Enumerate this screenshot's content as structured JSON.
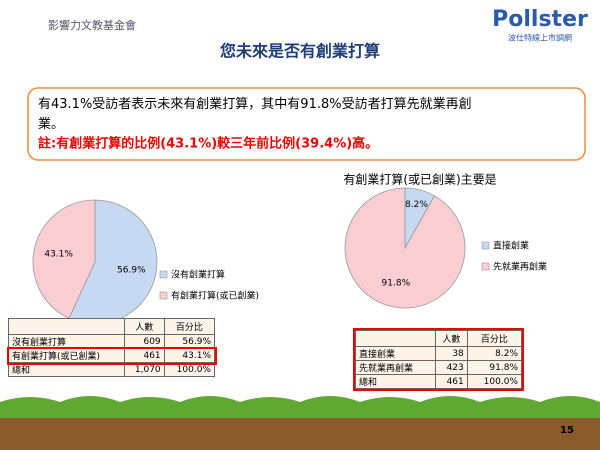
{
  "header": {
    "logo_left": "影響力文教基金會",
    "logo_right": "Pollster",
    "logo_right_sub": "波仕特線上市調網",
    "title": "您未來是否有創業打算"
  },
  "summary": {
    "line1": "有43.1%受訪者表示未來有創業打算，其中有91.8%受訪者打算先就業再創業。",
    "line2": "註:有創業打算的比例(43.1%)較三年前比例(39.4%)高。"
  },
  "chart_data": [
    {
      "type": "pie",
      "categories": [
        "沒有創業打算",
        "有創業打算(或已創業)"
      ],
      "values": [
        56.9,
        43.1
      ],
      "value_labels": [
        "56.9%",
        "43.1%"
      ],
      "colors": [
        "#c6d9f1",
        "#f9cdd2"
      ]
    },
    {
      "type": "pie",
      "title": "有創業打算(或已創業)主要是",
      "categories": [
        "直接創業",
        "先就業再創業"
      ],
      "values": [
        8.2,
        91.8
      ],
      "value_labels": [
        "8.2%",
        "91.8%"
      ],
      "colors": [
        "#c6d9f1",
        "#f9cdd2"
      ]
    }
  ],
  "tables": [
    {
      "columns": [
        "人數",
        "百分比"
      ],
      "rows": [
        [
          "沒有創業打算",
          "609",
          "56.9%"
        ],
        [
          "有創業打算(或已創業)",
          "461",
          "43.1%"
        ],
        [
          "總和",
          "1,070",
          "100.0%"
        ]
      ]
    },
    {
      "columns": [
        "人數",
        "百分比"
      ],
      "rows": [
        [
          "直接創業",
          "38",
          "8.2%"
        ],
        [
          "先就業再創業",
          "423",
          "91.8%"
        ],
        [
          "總和",
          "461",
          "100.0%"
        ]
      ]
    }
  ],
  "page_number": "15"
}
